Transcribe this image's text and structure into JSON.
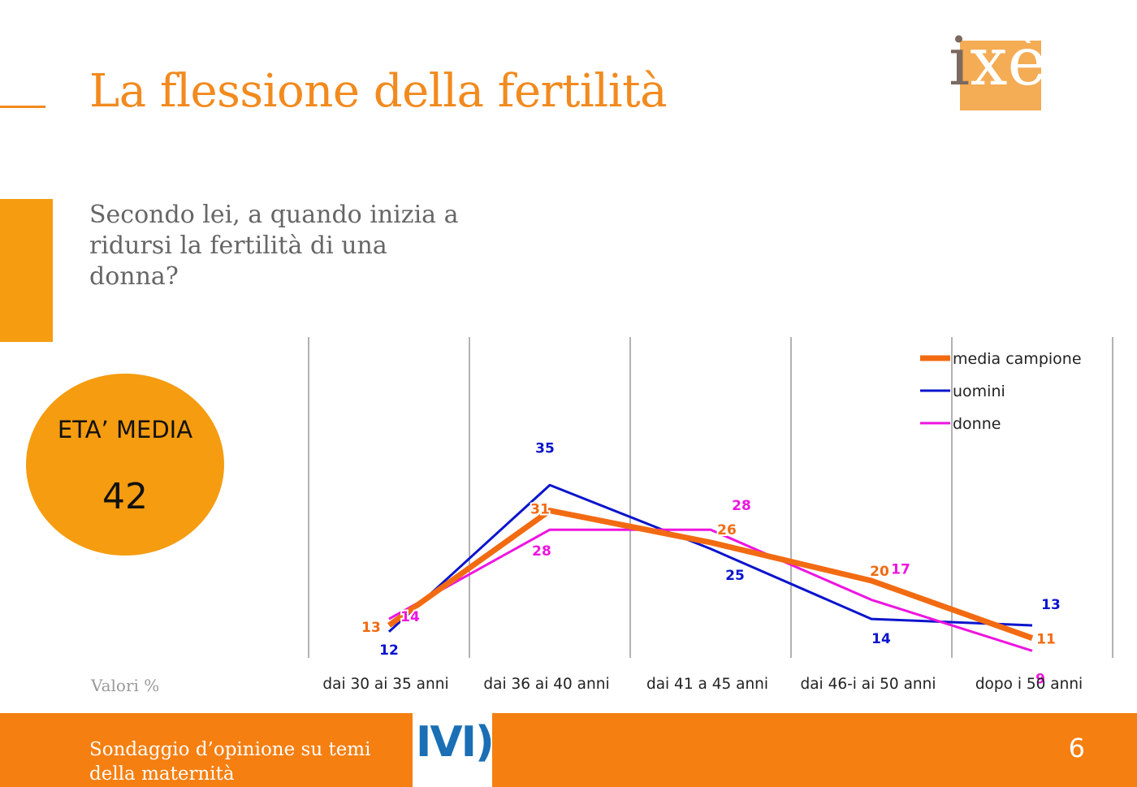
{
  "slide": {
    "title": "La flessione della fertilità",
    "question": "Secondo lei, a quando inizia a ridursi la fertilità di una donna?",
    "note": "Valori %",
    "page_number": "6"
  },
  "logo": {
    "brand_part1": "i",
    "brand_part2": "xè"
  },
  "highlight": {
    "label": "ETA’ MEDIA",
    "value": "42"
  },
  "footer": {
    "text": "Sondaggio d’opinione su temi della maternità",
    "logo_text": "IVI)"
  },
  "colors": {
    "accent": "#f28a1e",
    "orange_fill": "#f59c10",
    "footer": "#f57f11",
    "media": "#f26b12",
    "uomini": "#0a14cc",
    "donne": "#ee14e0"
  },
  "chart_data": {
    "type": "line",
    "categories": [
      "dai 30 ai 35 anni",
      "dai 36 ai 40 anni",
      "dai 41 a 45 anni",
      "dai 46-i ai 50 anni",
      "dopo i 50 anni"
    ],
    "series": [
      {
        "name": "media campione",
        "values": [
          13,
          31,
          26,
          20,
          11
        ],
        "color": "#f26b12"
      },
      {
        "name": "uomini",
        "values": [
          12,
          35,
          25,
          14,
          13
        ],
        "color": "#0a14cc"
      },
      {
        "name": "donne",
        "values": [
          14,
          28,
          28,
          17,
          9
        ],
        "color": "#ee14e0"
      }
    ],
    "legend_position": "top-right",
    "grid": "vertical separators",
    "ylim": [
      0,
      40
    ]
  }
}
